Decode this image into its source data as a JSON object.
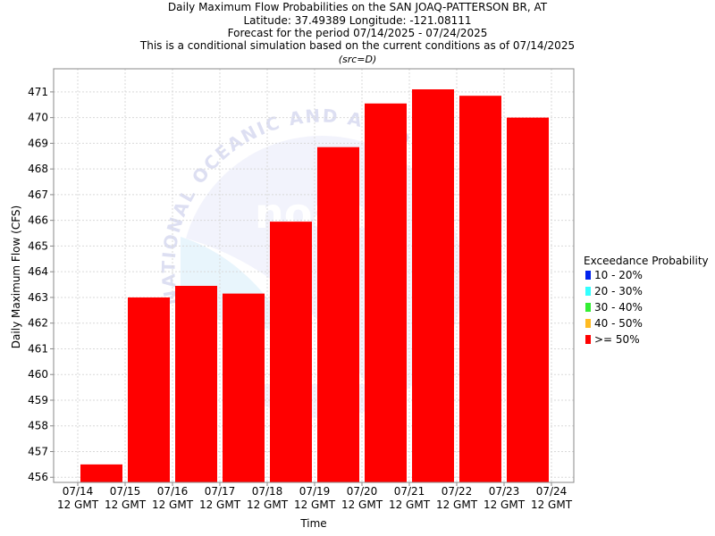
{
  "chart_data": {
    "type": "bar",
    "title_lines": [
      "Daily Maximum Flow Probabilities on the SAN JOAQ-PATTERSON BR, AT",
      "Latitude: 37.49389 Longitude: -121.08111",
      "Forecast for the period 07/14/2025 - 07/24/2025",
      "This is a conditional simulation based on the current conditions as of 07/14/2025"
    ],
    "subtitle": "(src=D)",
    "xlabel": "Time",
    "ylabel": "Daily Maximum Flow (CFS)",
    "ylim": [
      455.8,
      471.9
    ],
    "yticks": [
      456,
      457,
      458,
      459,
      460,
      461,
      462,
      463,
      464,
      465,
      466,
      467,
      468,
      469,
      470,
      471
    ],
    "x_ticks": [
      [
        "07/14",
        "12 GMT"
      ],
      [
        "07/15",
        "12 GMT"
      ],
      [
        "07/16",
        "12 GMT"
      ],
      [
        "07/17",
        "12 GMT"
      ],
      [
        "07/18",
        "12 GMT"
      ],
      [
        "07/19",
        "12 GMT"
      ],
      [
        "07/20",
        "12 GMT"
      ],
      [
        "07/21",
        "12 GMT"
      ],
      [
        "07/22",
        "12 GMT"
      ],
      [
        "07/23",
        "12 GMT"
      ],
      [
        "07/24",
        "12 GMT"
      ]
    ],
    "categories": [
      "07/14 12 GMT",
      "07/15 12 GMT",
      "07/16 12 GMT",
      "07/17 12 GMT",
      "07/18 12 GMT",
      "07/19 12 GMT",
      "07/20 12 GMT",
      "07/21 12 GMT",
      "07/22 12 GMT",
      "07/23 12 GMT"
    ],
    "series": [
      {
        "name": ">= 50%",
        "color": "#ff0000",
        "values": [
          456.5,
          463.0,
          463.45,
          463.15,
          465.95,
          468.85,
          470.55,
          471.1,
          470.85,
          470.0
        ]
      }
    ],
    "legend": {
      "title": "Exceedance Probability",
      "position": "right",
      "items": [
        {
          "label": "10 - 20%",
          "color": "#0022ee"
        },
        {
          "label": "20 - 30%",
          "color": "#33ffff"
        },
        {
          "label": "30 - 40%",
          "color": "#33ee33"
        },
        {
          "label": "40 - 50%",
          "color": "#ffbb22"
        },
        {
          "label": ">= 50%",
          "color": "#ff0000"
        }
      ]
    },
    "grid": true,
    "watermark_text": "NATIONAL OCEANIC AND ATMOSPHERIC"
  }
}
